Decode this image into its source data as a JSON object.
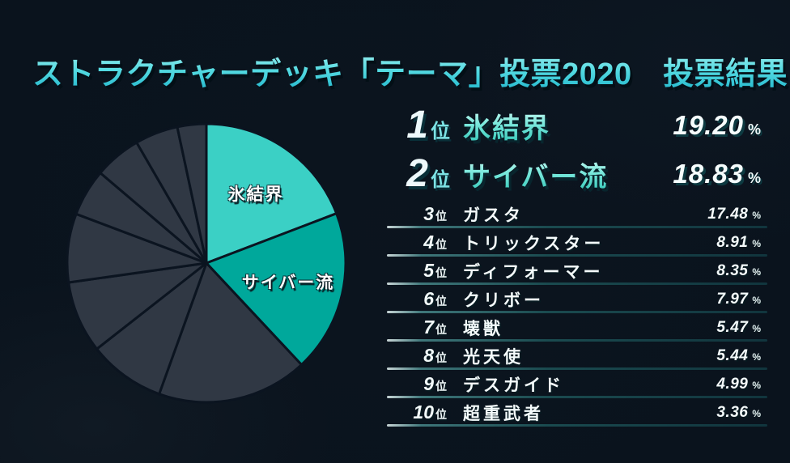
{
  "title": "ストラクチャーデッキ「テーマ」投票2020　投票結果!",
  "rank_suffix": "位",
  "percent_sign": "%",
  "ranking": [
    {
      "rank": "1",
      "name": "氷結界",
      "value": "19.20"
    },
    {
      "rank": "2",
      "name": "サイバー流",
      "value": "18.83"
    },
    {
      "rank": "3",
      "name": "ガスタ",
      "value": "17.48"
    },
    {
      "rank": "4",
      "name": "トリックスター",
      "value": "8.91"
    },
    {
      "rank": "5",
      "name": "ディフォーマー",
      "value": "8.35"
    },
    {
      "rank": "6",
      "name": "クリボー",
      "value": "7.97"
    },
    {
      "rank": "7",
      "name": "壊獣",
      "value": "5.47"
    },
    {
      "rank": "8",
      "name": "光天使",
      "value": "5.44"
    },
    {
      "rank": "9",
      "name": "デスガイド",
      "value": "4.99"
    },
    {
      "rank": "10",
      "name": "超重武者",
      "value": "3.36"
    }
  ],
  "chart_data": {
    "type": "pie",
    "title": "ストラクチャーデッキ「テーマ」投票2020 投票結果",
    "categories": [
      "氷結界",
      "サイバー流",
      "ガスタ",
      "トリックスター",
      "ディフォーマー",
      "クリボー",
      "壊獣",
      "光天使",
      "デスガイド",
      "超重武者"
    ],
    "values": [
      19.2,
      18.83,
      17.48,
      8.91,
      8.35,
      7.97,
      5.47,
      5.44,
      4.99,
      3.36
    ],
    "unit": "%",
    "start_angle_deg": 0,
    "direction": "clockwise",
    "labeled_slices": [
      "氷結界",
      "サイバー流"
    ],
    "legend_position": "none",
    "colors": {
      "slice_1": "#3bd0c5",
      "slice_2": "#00a89b",
      "slice_other": "#303844",
      "stroke": "#0b1420",
      "background": "#0a131d",
      "accent_cyan": "#4fd9e0"
    }
  }
}
